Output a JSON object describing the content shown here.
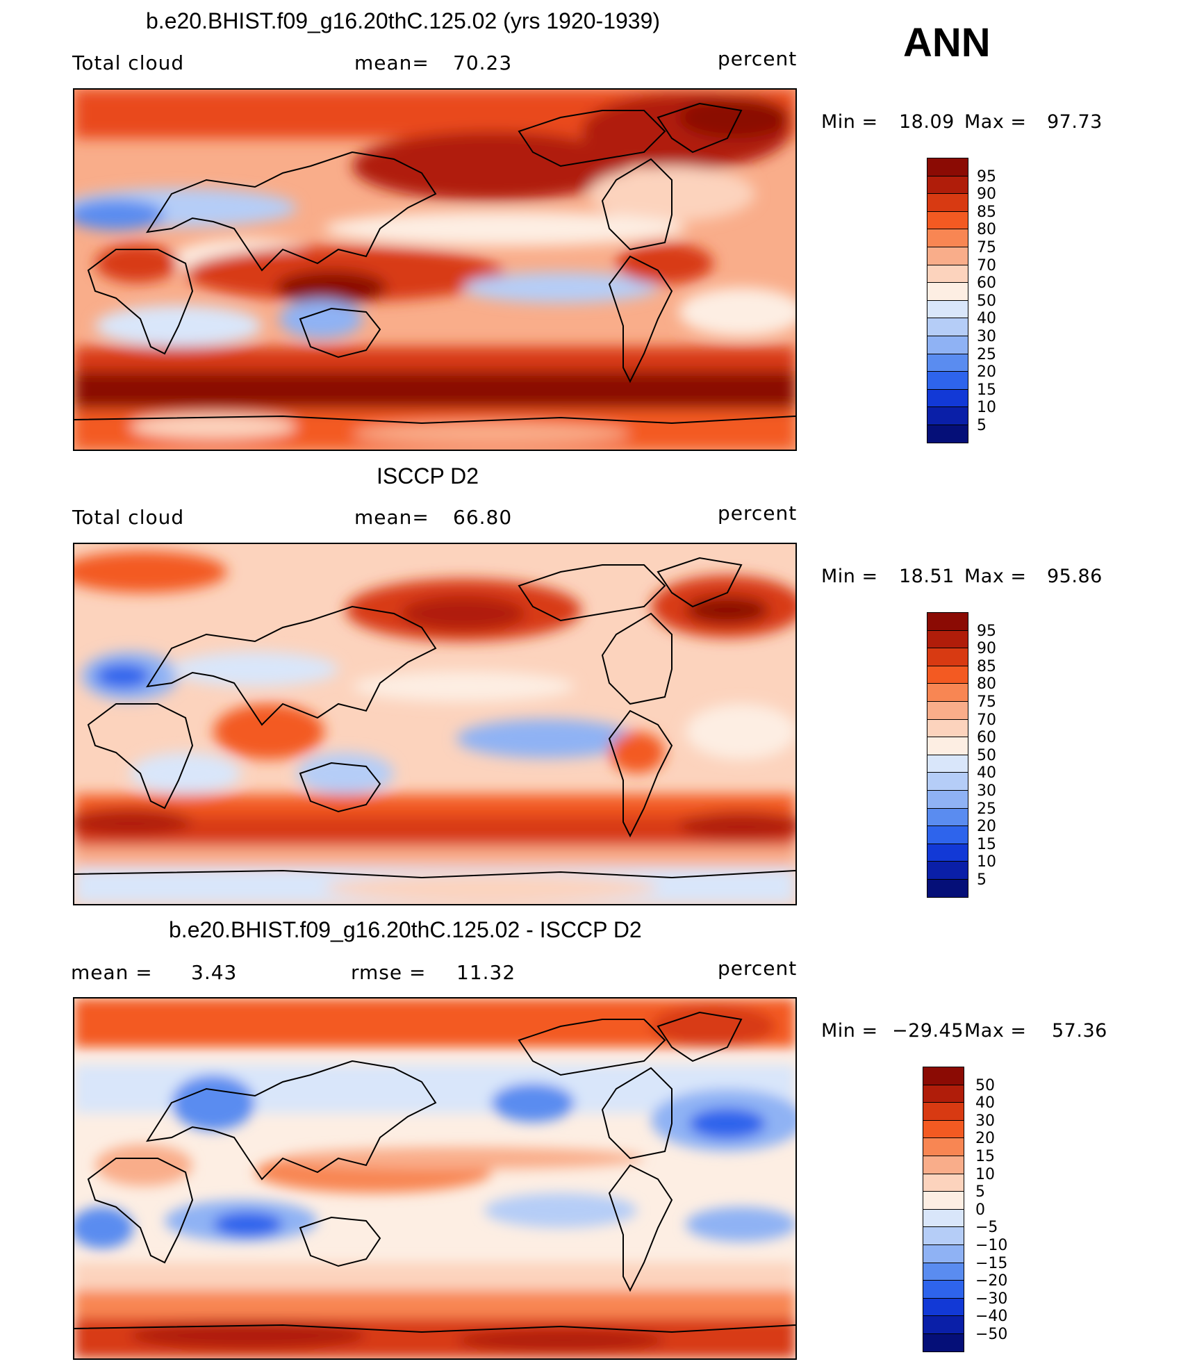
{
  "season": "ANN",
  "panels": [
    {
      "title": "b.e20.BHIST.f09_g16.20thC.125.02 (yrs 1920-1939)",
      "left_label": "Total cloud",
      "stat_label": "mean=",
      "stat_value": "70.23",
      "units": "percent",
      "min_label": "Min =",
      "min_value": "18.09",
      "max_label": "Max =",
      "max_value": "97.73",
      "colorbar": {
        "labels": [
          "95",
          "90",
          "85",
          "80",
          "75",
          "70",
          "60",
          "50",
          "40",
          "30",
          "25",
          "20",
          "15",
          "10",
          "5"
        ],
        "colors": [
          "#8b0b04",
          "#b01d0a",
          "#d83a12",
          "#f35a22",
          "#f88653",
          "#f9ad8a",
          "#fcd3bd",
          "#fdeee3",
          "#d9e6fa",
          "#b5cdf7",
          "#8fb2f4",
          "#5a8cf0",
          "#2e64ec",
          "#1239d6",
          "#0a1fa8",
          "#050f78"
        ]
      }
    },
    {
      "title": "ISCCP D2",
      "left_label": "Total cloud",
      "stat_label": "mean=",
      "stat_value": "66.80",
      "units": "percent",
      "min_label": "Min =",
      "min_value": "18.51",
      "max_label": "Max =",
      "max_value": "95.86",
      "colorbar": {
        "labels": [
          "95",
          "90",
          "85",
          "80",
          "75",
          "70",
          "60",
          "50",
          "40",
          "30",
          "25",
          "20",
          "15",
          "10",
          "5"
        ],
        "colors": [
          "#8b0b04",
          "#b01d0a",
          "#d83a12",
          "#f35a22",
          "#f88653",
          "#f9ad8a",
          "#fcd3bd",
          "#fdeee3",
          "#d9e6fa",
          "#b5cdf7",
          "#8fb2f4",
          "#5a8cf0",
          "#2e64ec",
          "#1239d6",
          "#0a1fa8",
          "#050f78"
        ]
      }
    },
    {
      "title": "b.e20.BHIST.f09_g16.20thC.125.02 - ISCCP D2",
      "left_label": "mean =",
      "left_value": "3.43",
      "stat_label": "rmse =",
      "stat_value": "11.32",
      "units": "percent",
      "min_label": "Min =",
      "min_value": "−29.45",
      "max_label": "Max =",
      "max_value": "57.36",
      "colorbar": {
        "labels": [
          "50",
          "40",
          "30",
          "20",
          "15",
          "10",
          "5",
          "0",
          "−5",
          "−10",
          "−15",
          "−20",
          "−30",
          "−40",
          "−50"
        ],
        "colors": [
          "#8b0b04",
          "#b01d0a",
          "#d83a12",
          "#f35a22",
          "#f88653",
          "#f9ad8a",
          "#fcd3bd",
          "#fdeee3",
          "#d9e6fa",
          "#b5cdf7",
          "#8fb2f4",
          "#5a8cf0",
          "#2e64ec",
          "#1239d6",
          "#0a1fa8",
          "#050f78"
        ]
      }
    }
  ]
}
